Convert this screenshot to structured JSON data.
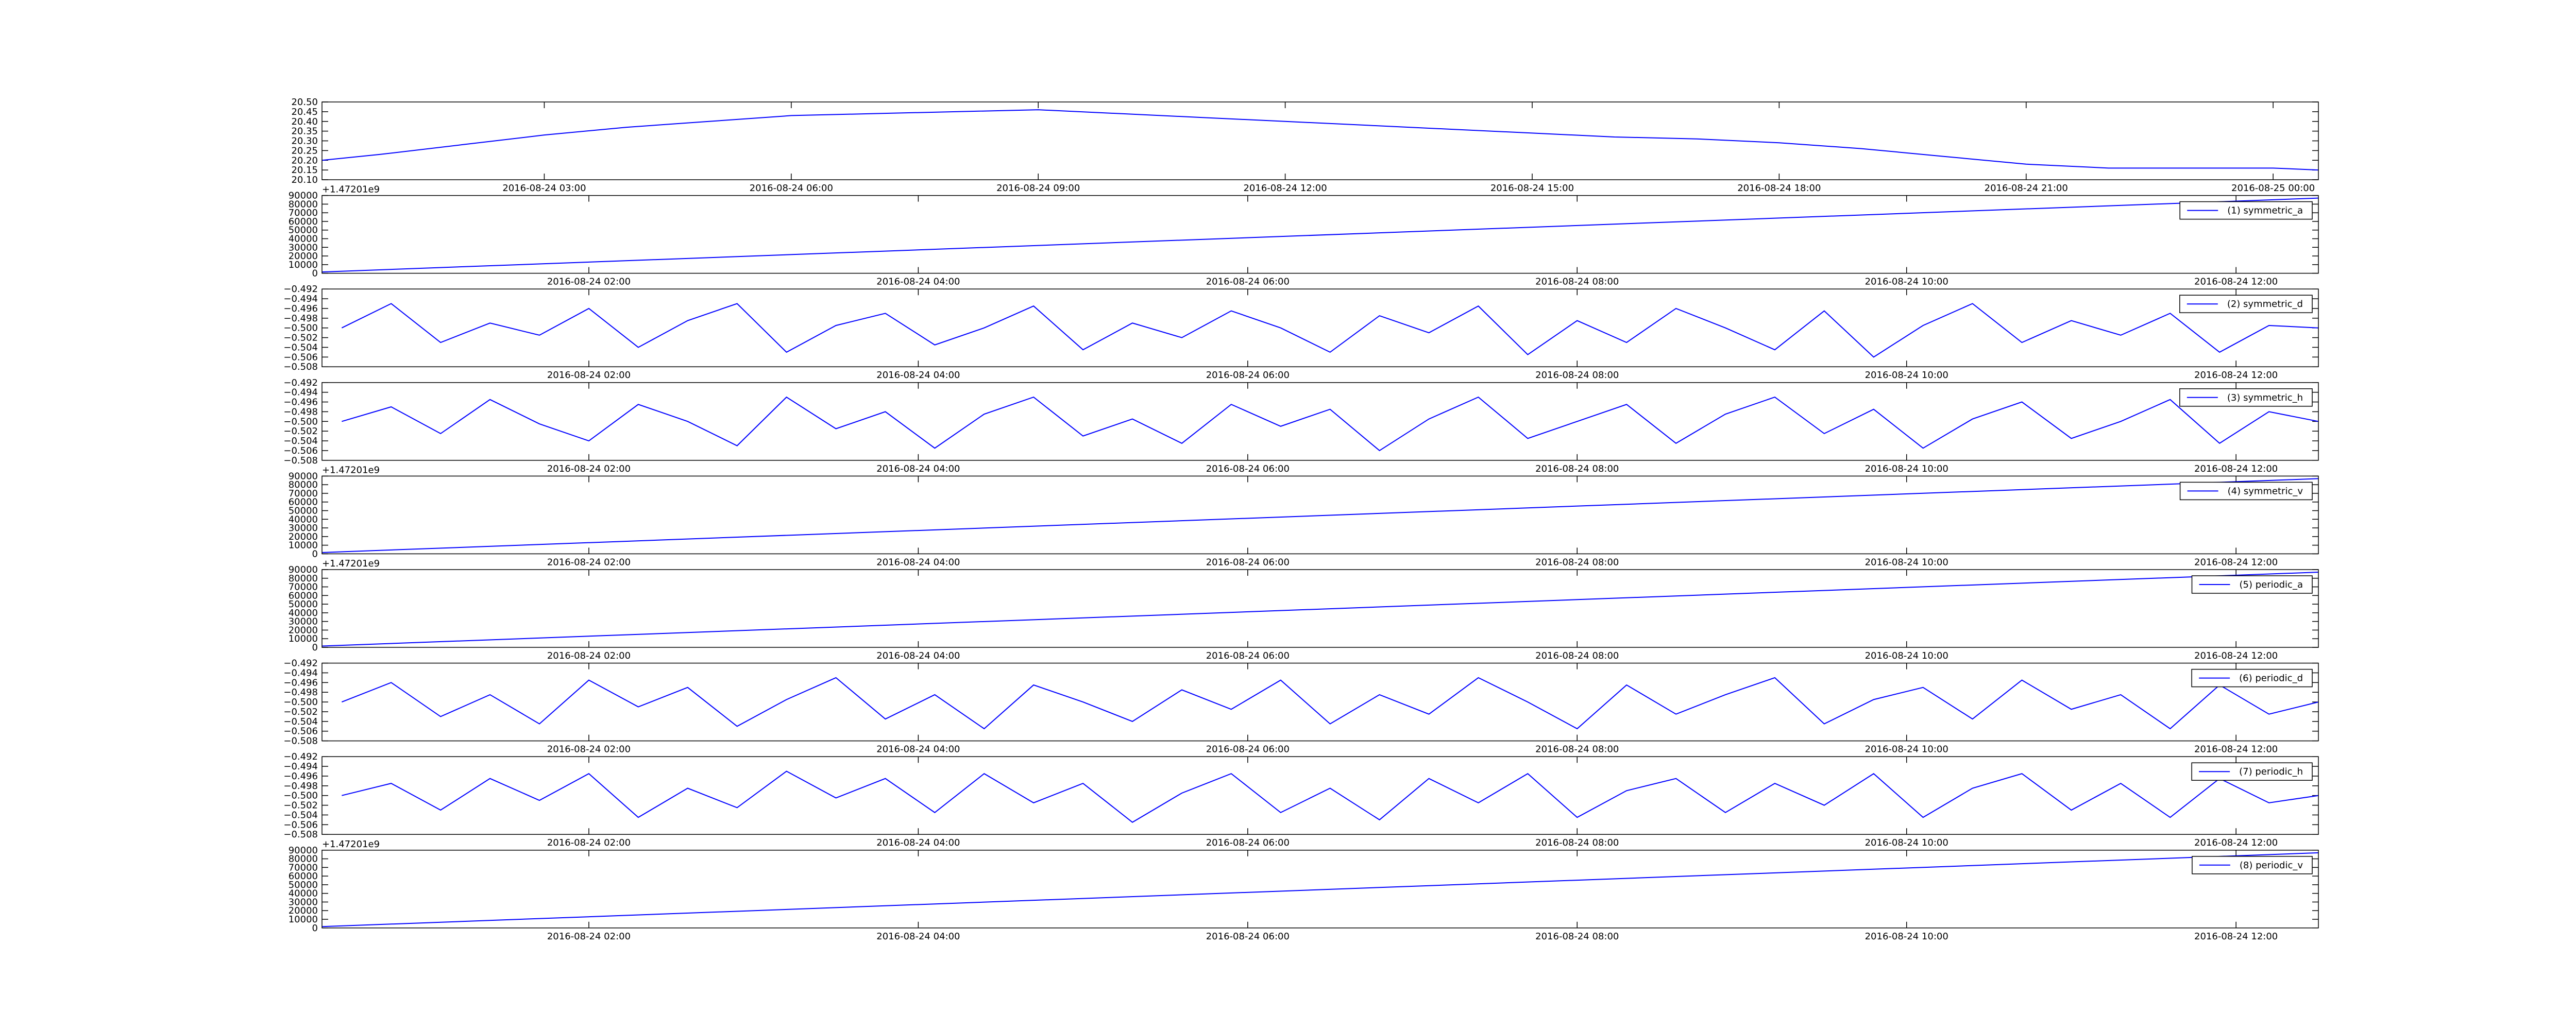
{
  "chart_data": [
    {
      "type": "line",
      "xlim": [
        0.3,
        24.55
      ],
      "ylim": [
        20.1,
        20.5
      ],
      "xticks": [
        {
          "value": 3,
          "label": "2016-08-24 03:00"
        },
        {
          "value": 6,
          "label": "2016-08-24 06:00"
        },
        {
          "value": 9,
          "label": "2016-08-24 09:00"
        },
        {
          "value": 12,
          "label": "2016-08-24 12:00"
        },
        {
          "value": 15,
          "label": "2016-08-24 15:00"
        },
        {
          "value": 18,
          "label": "2016-08-24 18:00"
        },
        {
          "value": 21,
          "label": "2016-08-24 21:00"
        },
        {
          "value": 24,
          "label": "2016-08-25 00:00"
        }
      ],
      "yticks": [
        {
          "value": 20.1,
          "label": "20.10"
        },
        {
          "value": 20.15,
          "label": "20.15"
        },
        {
          "value": 20.2,
          "label": "20.20"
        },
        {
          "value": 20.25,
          "label": "20.25"
        },
        {
          "value": 20.3,
          "label": "20.30"
        },
        {
          "value": 20.35,
          "label": "20.35"
        },
        {
          "value": 20.4,
          "label": "20.40"
        },
        {
          "value": 20.45,
          "label": "20.45"
        },
        {
          "value": 20.5,
          "label": "20.50"
        }
      ],
      "x": [
        0.3,
        1,
        2,
        3,
        4,
        5,
        6,
        7,
        8,
        9,
        10,
        11,
        12,
        13,
        14,
        15,
        16,
        17,
        18,
        19,
        20,
        21,
        22,
        23,
        24,
        24.55
      ],
      "series": [
        {
          "color": "#0000ff",
          "values": [
            20.2,
            20.23,
            20.28,
            20.33,
            20.37,
            20.4,
            20.43,
            20.44,
            20.45,
            20.46,
            20.44,
            20.42,
            20.4,
            20.38,
            20.36,
            20.34,
            20.32,
            20.31,
            20.29,
            20.26,
            20.22,
            20.18,
            20.16,
            20.16,
            20.16,
            20.15
          ]
        }
      ]
    },
    {
      "type": "line",
      "xlim": [
        0.38,
        12.5
      ],
      "ylim": [
        0,
        90000
      ],
      "y_offset_label": "+1.47201e9",
      "legend": "upper right",
      "xticks": [
        {
          "value": 2,
          "label": "2016-08-24 02:00"
        },
        {
          "value": 4,
          "label": "2016-08-24 04:00"
        },
        {
          "value": 6,
          "label": "2016-08-24 06:00"
        },
        {
          "value": 8,
          "label": "2016-08-24 08:00"
        },
        {
          "value": 10,
          "label": "2016-08-24 10:00"
        },
        {
          "value": 12,
          "label": "2016-08-24 12:00"
        }
      ],
      "yticks": [
        0,
        10000,
        20000,
        30000,
        40000,
        50000,
        60000,
        70000,
        80000,
        90000
      ],
      "x": [
        0.38,
        12.5
      ],
      "series": [
        {
          "name": "(1) symmetric_a",
          "color": "#0000ff",
          "values": [
            1500,
            87000
          ]
        }
      ]
    },
    {
      "type": "line",
      "xlim": [
        0.38,
        12.5
      ],
      "ylim": [
        -0.508,
        -0.492
      ],
      "legend": "upper right",
      "xticks": [
        {
          "value": 2,
          "label": "2016-08-24 02:00"
        },
        {
          "value": 4,
          "label": "2016-08-24 04:00"
        },
        {
          "value": 6,
          "label": "2016-08-24 06:00"
        },
        {
          "value": 8,
          "label": "2016-08-24 08:00"
        },
        {
          "value": 10,
          "label": "2016-08-24 10:00"
        },
        {
          "value": 12,
          "label": "2016-08-24 12:00"
        }
      ],
      "yticks": [
        {
          "value": -0.508,
          "label": "−0.508"
        },
        {
          "value": -0.506,
          "label": "−0.506"
        },
        {
          "value": -0.504,
          "label": "−0.504"
        },
        {
          "value": -0.502,
          "label": "−0.502"
        },
        {
          "value": -0.5,
          "label": "−0.500"
        },
        {
          "value": -0.498,
          "label": "−0.498"
        },
        {
          "value": -0.496,
          "label": "−0.496"
        },
        {
          "value": -0.494,
          "label": "−0.494"
        },
        {
          "value": -0.492,
          "label": "−0.492"
        }
      ],
      "x": [
        0.5,
        0.8,
        1.1,
        1.4,
        1.7,
        2,
        2.3,
        2.6,
        2.9,
        3.2,
        3.5,
        3.8,
        4.1,
        4.4,
        4.7,
        5,
        5.3,
        5.6,
        5.9,
        6.2,
        6.5,
        6.8,
        7.1,
        7.4,
        7.7,
        8,
        8.3,
        8.6,
        8.9,
        9.2,
        9.5,
        9.8,
        10.1,
        10.4,
        10.7,
        11,
        11.3,
        11.6,
        11.9,
        12.2,
        12.5
      ],
      "series": [
        {
          "name": "(2) symmetric_d",
          "color": "#0000ff",
          "values": [
            -0.5,
            -0.495,
            -0.503,
            -0.499,
            -0.5015,
            -0.496,
            -0.504,
            -0.4985,
            -0.495,
            -0.505,
            -0.4995,
            -0.497,
            -0.5035,
            -0.5,
            -0.4955,
            -0.5045,
            -0.499,
            -0.502,
            -0.4965,
            -0.5,
            -0.505,
            -0.4975,
            -0.501,
            -0.4955,
            -0.5055,
            -0.4985,
            -0.503,
            -0.496,
            -0.5,
            -0.5045,
            -0.4965,
            -0.506,
            -0.4995,
            -0.495,
            -0.503,
            -0.4985,
            -0.5015,
            -0.497,
            -0.505,
            -0.4995,
            -0.5
          ]
        }
      ]
    },
    {
      "type": "line",
      "xlim": [
        0.38,
        12.5
      ],
      "ylim": [
        -0.508,
        -0.492
      ],
      "legend": "upper right",
      "xticks": [
        {
          "value": 2,
          "label": "2016-08-24 02:00"
        },
        {
          "value": 4,
          "label": "2016-08-24 04:00"
        },
        {
          "value": 6,
          "label": "2016-08-24 06:00"
        },
        {
          "value": 8,
          "label": "2016-08-24 08:00"
        },
        {
          "value": 10,
          "label": "2016-08-24 10:00"
        },
        {
          "value": 12,
          "label": "2016-08-24 12:00"
        }
      ],
      "yticks": [
        {
          "value": -0.508,
          "label": "−0.508"
        },
        {
          "value": -0.506,
          "label": "−0.506"
        },
        {
          "value": -0.504,
          "label": "−0.504"
        },
        {
          "value": -0.502,
          "label": "−0.502"
        },
        {
          "value": -0.5,
          "label": "−0.500"
        },
        {
          "value": -0.498,
          "label": "−0.498"
        },
        {
          "value": -0.496,
          "label": "−0.496"
        },
        {
          "value": -0.494,
          "label": "−0.494"
        },
        {
          "value": -0.492,
          "label": "−0.492"
        }
      ],
      "x": [
        0.5,
        0.8,
        1.1,
        1.4,
        1.7,
        2,
        2.3,
        2.6,
        2.9,
        3.2,
        3.5,
        3.8,
        4.1,
        4.4,
        4.7,
        5,
        5.3,
        5.6,
        5.9,
        6.2,
        6.5,
        6.8,
        7.1,
        7.4,
        7.7,
        8,
        8.3,
        8.6,
        8.9,
        9.2,
        9.5,
        9.8,
        10.1,
        10.4,
        10.7,
        11,
        11.3,
        11.6,
        11.9,
        12.2,
        12.5
      ],
      "series": [
        {
          "name": "(3) symmetric_h",
          "color": "#0000ff",
          "values": [
            -0.5,
            -0.497,
            -0.5025,
            -0.4955,
            -0.5005,
            -0.504,
            -0.4965,
            -0.5,
            -0.505,
            -0.495,
            -0.5015,
            -0.498,
            -0.5055,
            -0.4985,
            -0.495,
            -0.503,
            -0.4995,
            -0.5045,
            -0.4965,
            -0.501,
            -0.4975,
            -0.506,
            -0.4995,
            -0.495,
            -0.5035,
            -0.5,
            -0.4965,
            -0.5045,
            -0.4985,
            -0.495,
            -0.5025,
            -0.4975,
            -0.5055,
            -0.4995,
            -0.496,
            -0.5035,
            -0.5,
            -0.4955,
            -0.5045,
            -0.498,
            -0.5
          ]
        }
      ]
    },
    {
      "type": "line",
      "xlim": [
        0.38,
        12.5
      ],
      "ylim": [
        0,
        90000
      ],
      "y_offset_label": "+1.47201e9",
      "legend": "upper right",
      "xticks": [
        {
          "value": 2,
          "label": "2016-08-24 02:00"
        },
        {
          "value": 4,
          "label": "2016-08-24 04:00"
        },
        {
          "value": 6,
          "label": "2016-08-24 06:00"
        },
        {
          "value": 8,
          "label": "2016-08-24 08:00"
        },
        {
          "value": 10,
          "label": "2016-08-24 10:00"
        },
        {
          "value": 12,
          "label": "2016-08-24 12:00"
        }
      ],
      "yticks": [
        0,
        10000,
        20000,
        30000,
        40000,
        50000,
        60000,
        70000,
        80000,
        90000
      ],
      "x": [
        0.38,
        12.5
      ],
      "series": [
        {
          "name": "(4) symmetric_v",
          "color": "#0000ff",
          "values": [
            1500,
            87000
          ]
        }
      ]
    },
    {
      "type": "line",
      "xlim": [
        0.38,
        12.5
      ],
      "ylim": [
        0,
        90000
      ],
      "y_offset_label": "+1.47201e9",
      "legend": "upper right",
      "xticks": [
        {
          "value": 2,
          "label": "2016-08-24 02:00"
        },
        {
          "value": 4,
          "label": "2016-08-24 04:00"
        },
        {
          "value": 6,
          "label": "2016-08-24 06:00"
        },
        {
          "value": 8,
          "label": "2016-08-24 08:00"
        },
        {
          "value": 10,
          "label": "2016-08-24 10:00"
        },
        {
          "value": 12,
          "label": "2016-08-24 12:00"
        }
      ],
      "yticks": [
        0,
        10000,
        20000,
        30000,
        40000,
        50000,
        60000,
        70000,
        80000,
        90000
      ],
      "x": [
        0.38,
        12.5
      ],
      "series": [
        {
          "name": "(5) periodic_a",
          "color": "#0000ff",
          "values": [
            1500,
            87000
          ]
        }
      ]
    },
    {
      "type": "line",
      "xlim": [
        0.38,
        12.5
      ],
      "ylim": [
        -0.508,
        -0.492
      ],
      "legend": "upper right",
      "xticks": [
        {
          "value": 2,
          "label": "2016-08-24 02:00"
        },
        {
          "value": 4,
          "label": "2016-08-24 04:00"
        },
        {
          "value": 6,
          "label": "2016-08-24 06:00"
        },
        {
          "value": 8,
          "label": "2016-08-24 08:00"
        },
        {
          "value": 10,
          "label": "2016-08-24 10:00"
        },
        {
          "value": 12,
          "label": "2016-08-24 12:00"
        }
      ],
      "yticks": [
        {
          "value": -0.508,
          "label": "−0.508"
        },
        {
          "value": -0.506,
          "label": "−0.506"
        },
        {
          "value": -0.504,
          "label": "−0.504"
        },
        {
          "value": -0.502,
          "label": "−0.502"
        },
        {
          "value": -0.5,
          "label": "−0.500"
        },
        {
          "value": -0.498,
          "label": "−0.498"
        },
        {
          "value": -0.496,
          "label": "−0.496"
        },
        {
          "value": -0.494,
          "label": "−0.494"
        },
        {
          "value": -0.492,
          "label": "−0.492"
        }
      ],
      "x": [
        0.5,
        0.8,
        1.1,
        1.4,
        1.7,
        2,
        2.3,
        2.6,
        2.9,
        3.2,
        3.5,
        3.8,
        4.1,
        4.4,
        4.7,
        5,
        5.3,
        5.6,
        5.9,
        6.2,
        6.5,
        6.8,
        7.1,
        7.4,
        7.7,
        8,
        8.3,
        8.6,
        8.9,
        9.2,
        9.5,
        9.8,
        10.1,
        10.4,
        10.7,
        11,
        11.3,
        11.6,
        11.9,
        12.2,
        12.5
      ],
      "series": [
        {
          "name": "(6) periodic_d",
          "color": "#0000ff",
          "values": [
            -0.5,
            -0.496,
            -0.503,
            -0.4985,
            -0.5045,
            -0.4955,
            -0.501,
            -0.497,
            -0.505,
            -0.4995,
            -0.495,
            -0.5035,
            -0.4985,
            -0.5055,
            -0.4965,
            -0.5,
            -0.504,
            -0.4975,
            -0.5015,
            -0.4955,
            -0.5045,
            -0.4985,
            -0.5025,
            -0.495,
            -0.5,
            -0.5055,
            -0.4965,
            -0.5025,
            -0.4985,
            -0.495,
            -0.5045,
            -0.4995,
            -0.497,
            -0.5035,
            -0.4955,
            -0.5015,
            -0.4985,
            -0.5055,
            -0.4965,
            -0.5025,
            -0.5
          ]
        }
      ]
    },
    {
      "type": "line",
      "xlim": [
        0.38,
        12.5
      ],
      "ylim": [
        -0.508,
        -0.492
      ],
      "legend": "upper right",
      "xticks": [
        {
          "value": 2,
          "label": "2016-08-24 02:00"
        },
        {
          "value": 4,
          "label": "2016-08-24 04:00"
        },
        {
          "value": 6,
          "label": "2016-08-24 06:00"
        },
        {
          "value": 8,
          "label": "2016-08-24 08:00"
        },
        {
          "value": 10,
          "label": "2016-08-24 10:00"
        },
        {
          "value": 12,
          "label": "2016-08-24 12:00"
        }
      ],
      "yticks": [
        {
          "value": -0.508,
          "label": "−0.508"
        },
        {
          "value": -0.506,
          "label": "−0.506"
        },
        {
          "value": -0.504,
          "label": "−0.504"
        },
        {
          "value": -0.502,
          "label": "−0.502"
        },
        {
          "value": -0.5,
          "label": "−0.500"
        },
        {
          "value": -0.498,
          "label": "−0.498"
        },
        {
          "value": -0.496,
          "label": "−0.496"
        },
        {
          "value": -0.494,
          "label": "−0.494"
        },
        {
          "value": -0.492,
          "label": "−0.492"
        }
      ],
      "x": [
        0.5,
        0.8,
        1.1,
        1.4,
        1.7,
        2,
        2.3,
        2.6,
        2.9,
        3.2,
        3.5,
        3.8,
        4.1,
        4.4,
        4.7,
        5,
        5.3,
        5.6,
        5.9,
        6.2,
        6.5,
        6.8,
        7.1,
        7.4,
        7.7,
        8,
        8.3,
        8.6,
        8.9,
        9.2,
        9.5,
        9.8,
        10.1,
        10.4,
        10.7,
        11,
        11.3,
        11.6,
        11.9,
        12.2,
        12.5
      ],
      "series": [
        {
          "name": "(7) periodic_h",
          "color": "#0000ff",
          "values": [
            -0.5,
            -0.4975,
            -0.503,
            -0.4965,
            -0.501,
            -0.4955,
            -0.5045,
            -0.4985,
            -0.5025,
            -0.495,
            -0.5005,
            -0.4965,
            -0.5035,
            -0.4955,
            -0.5015,
            -0.4975,
            -0.5055,
            -0.4995,
            -0.4955,
            -0.5035,
            -0.4985,
            -0.505,
            -0.4965,
            -0.5015,
            -0.4955,
            -0.5045,
            -0.499,
            -0.4965,
            -0.5035,
            -0.4975,
            -0.502,
            -0.4955,
            -0.5045,
            -0.4985,
            -0.4955,
            -0.503,
            -0.4975,
            -0.5045,
            -0.4965,
            -0.5015,
            -0.5
          ]
        }
      ]
    },
    {
      "type": "line",
      "xlim": [
        0.38,
        12.5
      ],
      "ylim": [
        0,
        90000
      ],
      "y_offset_label": "+1.47201e9",
      "legend": "upper right",
      "xticks": [
        {
          "value": 2,
          "label": "2016-08-24 02:00"
        },
        {
          "value": 4,
          "label": "2016-08-24 04:00"
        },
        {
          "value": 6,
          "label": "2016-08-24 06:00"
        },
        {
          "value": 8,
          "label": "2016-08-24 08:00"
        },
        {
          "value": 10,
          "label": "2016-08-24 10:00"
        },
        {
          "value": 12,
          "label": "2016-08-24 12:00"
        }
      ],
      "yticks": [
        0,
        10000,
        20000,
        30000,
        40000,
        50000,
        60000,
        70000,
        80000,
        90000
      ],
      "x": [
        0.38,
        12.5
      ],
      "series": [
        {
          "name": "(8) periodic_v",
          "color": "#0000ff",
          "values": [
            1500,
            87000
          ]
        }
      ]
    }
  ]
}
